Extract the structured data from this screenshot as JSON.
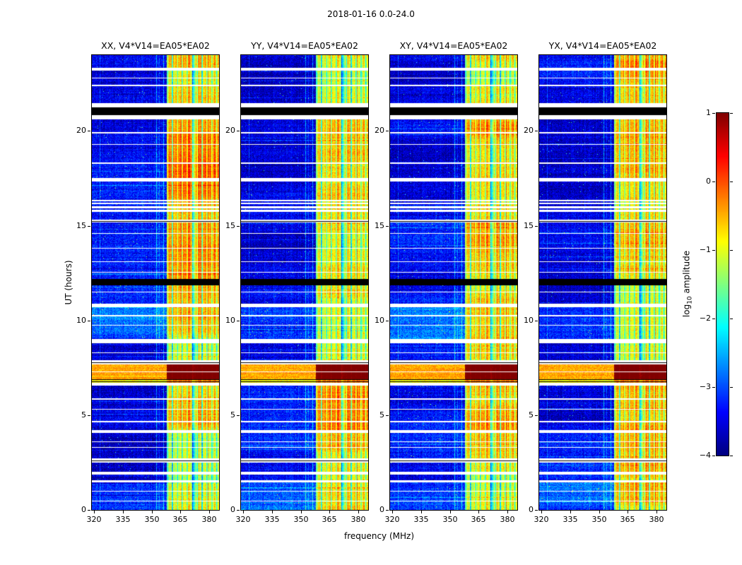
{
  "chart_data": {
    "type": "heatmap",
    "title": "2018-01-16 0.0-24.0",
    "xlabel": "frequency (MHz)",
    "ylabel": "UT (hours)",
    "x_range": [
      319,
      385
    ],
    "x_ticks": [
      320,
      335,
      350,
      365,
      380
    ],
    "y_range": [
      0,
      24
    ],
    "y_ticks": [
      0,
      5,
      10,
      15,
      20
    ],
    "colormap": "jet",
    "grid": false,
    "panels": [
      {
        "label": "XX, V4*V14=EA05*EA02",
        "seed": 101,
        "band_gain": 1.0
      },
      {
        "label": "YY, V4*V14=EA05*EA02",
        "seed": 202,
        "band_gain": 0.85
      },
      {
        "label": "XY, V4*V14=EA05*EA02",
        "seed": 303,
        "band_gain": 0.8
      },
      {
        "label": "YX, V4*V14=EA05*EA02",
        "seed": 404,
        "band_gain": 1.05
      }
    ],
    "colorbar": {
      "label": "log10 amplitude",
      "label_prefix": "log",
      "label_sub": "10",
      "label_suffix": " amplitude",
      "range": [
        -4,
        1
      ],
      "ticks": [
        1,
        0,
        -1,
        -2,
        -3,
        -4
      ]
    },
    "features": {
      "background_level": -3.45,
      "light_region_level": -2.95,
      "bright_band_mhz": [
        358,
        385
      ],
      "bright_band_level": -1.35,
      "band_notch_mhz": [
        371,
        372.5
      ],
      "rfi_columns_mhz": [
        352.5,
        356
      ],
      "flare_ut": [
        6.9,
        7.68
      ],
      "flare_ramp_ut": [
        6.72,
        6.9
      ],
      "flare_band_level": 0.85,
      "black_bands_ut": [
        [
          11.85,
          12.2
        ],
        [
          20.82,
          21.25
        ]
      ],
      "white_gaps_ut": [
        [
          1.45,
          1.55
        ],
        [
          1.85,
          2.0
        ],
        [
          2.5,
          2.72
        ],
        [
          4.06,
          4.2
        ],
        [
          6.55,
          6.72
        ],
        [
          7.68,
          7.9
        ],
        [
          8.8,
          9.0
        ],
        [
          10.7,
          10.9
        ],
        [
          15.15,
          15.3
        ],
        [
          15.73,
          15.85
        ],
        [
          15.92,
          16.04
        ],
        [
          16.12,
          16.22
        ],
        [
          16.28,
          16.36
        ],
        [
          17.33,
          17.5
        ],
        [
          20.6,
          20.82
        ],
        [
          21.25,
          21.45
        ],
        [
          22.35,
          22.45
        ],
        [
          23.17,
          23.32
        ]
      ],
      "thin_white_lines_ut": [
        0.45,
        1.0,
        3.3,
        3.6,
        4.66,
        5.3,
        5.85,
        7.3,
        8.3,
        9.76,
        10.25,
        11.5,
        12.55,
        13.1,
        13.8,
        14.6,
        18.3,
        19.3,
        19.9,
        22.8
      ],
      "thin_black_lines_ut": [
        2.6,
        6.78,
        6.86,
        7.78,
        15.22
      ],
      "light_regions_ut": [
        [
          0,
          1.45
        ],
        [
          9.0,
          10.7
        ]
      ],
      "band_boost_regions": [
        {
          "ut": [
            0,
            1.45
          ],
          "boost": 0.4
        },
        {
          "ut": [
            1.55,
            1.85
          ],
          "boost": 0.2
        },
        {
          "ut": [
            2.0,
            2.5
          ],
          "boost": 0.3
        },
        {
          "ut": [
            2.72,
            4.06
          ],
          "boost": 0.3
        },
        {
          "ut": [
            4.2,
            6.55
          ],
          "boost": 0.55
        },
        {
          "ut": [
            7.9,
            8.8
          ],
          "boost": 0.3
        },
        {
          "ut": [
            9.0,
            10.7
          ],
          "boost": 0.35
        },
        {
          "ut": [
            10.9,
            11.85
          ],
          "boost": 0.3
        },
        {
          "ut": [
            12.2,
            15.15
          ],
          "boost": 0.45
        },
        {
          "ut": [
            15.3,
            16.36
          ],
          "boost": 0.35
        },
        {
          "ut": [
            16.36,
            17.33
          ],
          "boost": 0.5
        },
        {
          "ut": [
            17.5,
            20.6
          ],
          "boost": 0.65
        },
        {
          "ut": [
            21.45,
            22.35
          ],
          "boost": 0.45
        },
        {
          "ut": [
            22.45,
            23.17
          ],
          "boost": 0.35
        },
        {
          "ut": [
            23.32,
            24
          ],
          "boost": 0.5
        }
      ]
    },
    "colors": {
      "figure_background": "#ffffff",
      "axis": "#000000",
      "data_gap_white": "#ffffff",
      "outage_black": "#000000",
      "colormap_min": "#000080",
      "colormap_max": "#800000"
    }
  }
}
